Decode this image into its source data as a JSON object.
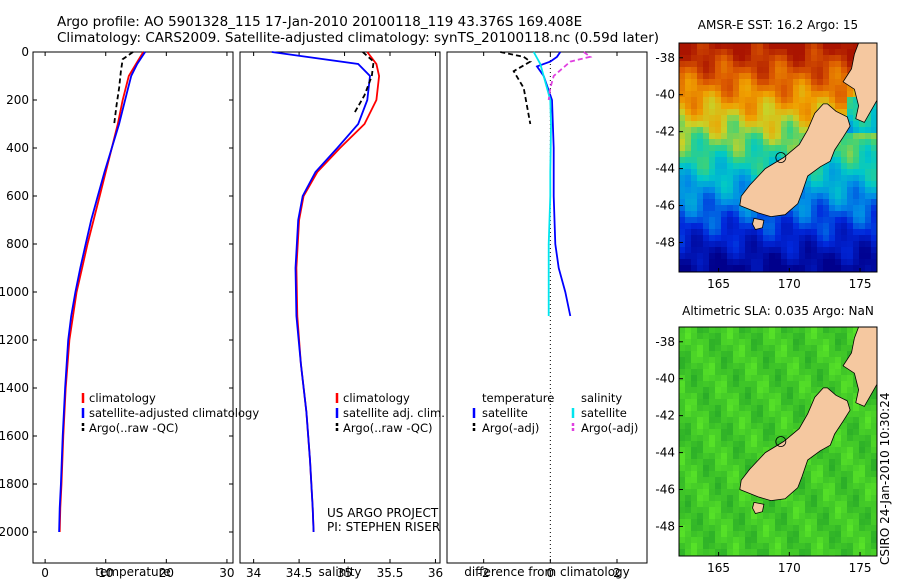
{
  "header": {
    "line1": "Argo profile: AO 5901328_115 17-Jan-2010 20100118_119 43.376S 169.408E",
    "line2": "Climatology: CARS2009. Satellite-adjusted climatology: synTS_20100118.nc (0.59d later)"
  },
  "credit": {
    "line1": "US ARGO PROJECT",
    "line2": "PI: STEPHEN RISER"
  },
  "timestamp": "CSIRO 24-Jan-2010 10:30:24",
  "colors": {
    "climatology": "#ff0000",
    "satellite": "#0000ff",
    "argo": "#000000",
    "satellite_sal": "#00e5ee",
    "argo_sal": "#e040e0"
  },
  "maps": [
    {
      "title": "AMSR-E SST: 16.2  Argo: 15",
      "xticks": [
        "165",
        "170",
        "175"
      ],
      "yticks": [
        "-38",
        "-40",
        "-42",
        "-44",
        "-46",
        "-48"
      ],
      "field": "sst"
    },
    {
      "title": "Altimetric SLA: 0.035  Argo: NaN",
      "xticks": [
        "165",
        "170",
        "175"
      ],
      "yticks": [
        "-38",
        "-40",
        "-42",
        "-44",
        "-46",
        "-48"
      ],
      "field": "sla"
    }
  ],
  "chart_data": [
    {
      "type": "line",
      "xlabel": "temperature",
      "ylabel": "",
      "xlim": [
        -2,
        31
      ],
      "ylim": [
        2050,
        0
      ],
      "xticks": [
        0,
        10,
        20,
        30
      ],
      "yticks": [
        0,
        200,
        400,
        600,
        800,
        1000,
        1200,
        1400,
        1600,
        1800,
        2000
      ],
      "legend": [
        "climatology",
        "satellite-adjusted climatology",
        "Argo(..raw -QC)"
      ],
      "series": [
        {
          "name": "climatology",
          "color": "#ff0000",
          "style": "solid",
          "x": [
            16.2,
            15.0,
            13.8,
            12.8,
            12.0,
            11.0,
            10.0,
            9.0,
            8.0,
            7.0,
            6.1,
            5.2,
            4.6,
            4.0,
            3.4,
            3.0,
            2.7,
            2.5,
            2.4
          ],
          "y": [
            0,
            50,
            100,
            200,
            300,
            400,
            500,
            600,
            700,
            800,
            900,
            1000,
            1100,
            1200,
            1400,
            1600,
            1800,
            1900,
            2000
          ]
        },
        {
          "name": "satellite-adjusted climatology",
          "color": "#0000ff",
          "style": "solid",
          "x": [
            16.5,
            15.2,
            14.2,
            13.2,
            12.2,
            11.0,
            9.8,
            8.7,
            7.6,
            6.7,
            5.8,
            5.0,
            4.3,
            3.8,
            3.3,
            2.9,
            2.6,
            2.4,
            2.3
          ],
          "y": [
            0,
            50,
            100,
            200,
            300,
            400,
            500,
            600,
            700,
            800,
            900,
            1000,
            1100,
            1200,
            1400,
            1600,
            1800,
            1900,
            2000
          ]
        },
        {
          "name": "Argo(..raw -QC)",
          "color": "#000000",
          "style": "dashed",
          "x": [
            14.5,
            12.8,
            12.5,
            12.2,
            11.8,
            11.4
          ],
          "y": [
            0,
            30,
            80,
            150,
            220,
            300
          ]
        }
      ]
    },
    {
      "type": "line",
      "xlabel": "salinity",
      "ylabel": "",
      "xlim": [
        33.85,
        36.05
      ],
      "ylim": [
        2050,
        0
      ],
      "xticks": [
        34,
        34.5,
        35,
        35.5,
        36
      ],
      "yticks": [],
      "legend": [
        "climatology",
        "satellite adj. clim.",
        "Argo(..raw -QC)"
      ],
      "series": [
        {
          "name": "climatology",
          "color": "#ff0000",
          "style": "solid",
          "x": [
            35.25,
            35.35,
            35.38,
            35.35,
            35.22,
            34.95,
            34.7,
            34.55,
            34.5,
            34.47,
            34.48,
            34.52,
            34.58,
            34.62,
            34.65,
            34.66
          ],
          "y": [
            0,
            50,
            100,
            200,
            300,
            400,
            500,
            600,
            700,
            900,
            1100,
            1300,
            1500,
            1700,
            1900,
            2000
          ]
        },
        {
          "name": "satellite adj. clim.",
          "color": "#0000ff",
          "style": "solid",
          "x": [
            34.2,
            35.15,
            35.28,
            35.25,
            35.15,
            34.92,
            34.68,
            34.54,
            34.49,
            34.46,
            34.47,
            34.52,
            34.58,
            34.62,
            34.65,
            34.66
          ],
          "y": [
            0,
            50,
            100,
            200,
            300,
            400,
            500,
            600,
            700,
            900,
            1100,
            1300,
            1500,
            1700,
            1900,
            2000
          ]
        },
        {
          "name": "Argo(..raw -QC)",
          "color": "#000000",
          "style": "dashed",
          "x": [
            35.2,
            35.32,
            35.3,
            35.22,
            35.1
          ],
          "y": [
            0,
            40,
            100,
            180,
            260
          ]
        }
      ]
    },
    {
      "type": "line",
      "xlabel": "difference from climatology",
      "ylabel": "",
      "xlim": [
        -3.1,
        2.9
      ],
      "ylim": [
        2050,
        0
      ],
      "xticks": [
        -2,
        0,
        2
      ],
      "yticks": [],
      "zero_line": true,
      "legend": [
        "temperature",
        "satellite",
        "Argo(-adj)",
        "salinity",
        "satellite",
        "Argo(-adj)"
      ],
      "series": [
        {
          "name": "satellite",
          "group": "temperature",
          "color": "#0000ff",
          "style": "solid",
          "x": [
            0.3,
            0.2,
            0.0,
            -0.4,
            -0.2,
            0.05,
            0.1,
            0.1,
            0.15,
            0.25,
            0.35,
            0.45,
            0.6
          ],
          "y": [
            0,
            20,
            40,
            60,
            100,
            200,
            400,
            600,
            800,
            900,
            950,
            1000,
            1100
          ]
        },
        {
          "name": "Argo(-adj)",
          "group": "temperature",
          "color": "#000000",
          "style": "dashed",
          "x": [
            -1.5,
            -0.8,
            -0.6,
            -1.1,
            -0.8,
            -0.6
          ],
          "y": [
            0,
            20,
            40,
            80,
            150,
            300
          ]
        },
        {
          "name": "satellite",
          "group": "salinity",
          "color": "#00e5ee",
          "style": "solid",
          "x": [
            -0.5,
            -0.3,
            -0.1,
            0.0,
            0.02,
            0.01,
            0.0,
            0.0,
            -0.05,
            -0.05,
            -0.05,
            -0.05
          ],
          "y": [
            0,
            50,
            150,
            200,
            300,
            400,
            500,
            600,
            800,
            900,
            1000,
            1100
          ]
        },
        {
          "name": "Argo(-adj)",
          "group": "salinity",
          "color": "#e040e0",
          "style": "dashed",
          "x": [
            1.0,
            1.2,
            0.6,
            0.1,
            0.0,
            -0.05
          ],
          "y": [
            0,
            20,
            40,
            100,
            150,
            200
          ]
        }
      ]
    }
  ]
}
